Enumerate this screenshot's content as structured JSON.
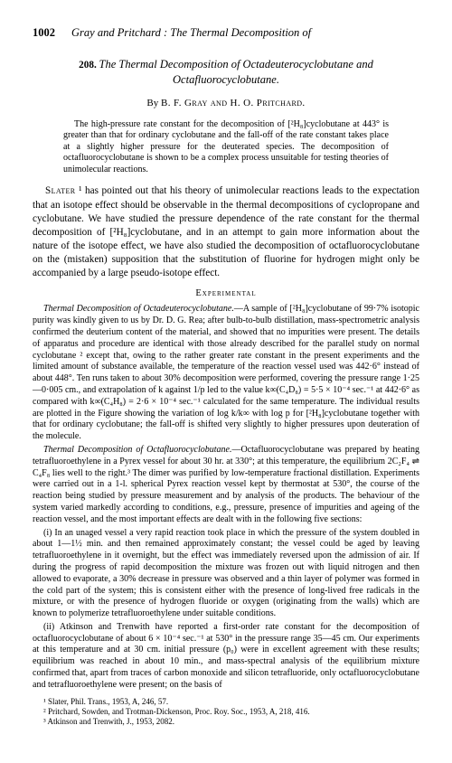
{
  "header": {
    "page_number": "1002",
    "running_head": "Gray and Pritchard : The Thermal Decomposition of"
  },
  "article": {
    "number": "208.",
    "title_line1": "The Thermal Decomposition of Octadeuterocyclobutane and",
    "title_line2": "Octafluorocyclobutane.",
    "byline_prefix": "By",
    "authors": "B. F. Gray and H. O. Pritchard."
  },
  "abstract": {
    "text": "The high-pressure rate constant for the decomposition of [²H₈]cyclobutane at 443° is greater than that for ordinary cyclobutane and the fall-off of the rate constant takes place at a slightly higher pressure for the deuterated species. The decomposition of octafluorocyclobutane is shown to be a complex process unsuitable for testing theories of unimolecular reactions."
  },
  "intro": {
    "lead_name": "Slater",
    "para": " ¹ has pointed out that his theory of unimolecular reactions leads to the expectation that an isotope effect should be observable in the thermal decompositions of cyclopropane and cyclobutane. We have studied the pressure dependence of the rate constant for the thermal decomposition of [²H₈]cyclobutane, and in an attempt to gain more information about the nature of the isotope effect, we have also studied the decomposition of octafluorocyclobutane on the (mistaken) supposition that the substitution of fluorine for hydrogen might only be accompanied by a large pseudo-isotope effect."
  },
  "experimental": {
    "heading": "Experimental",
    "para1_runin": "Thermal Decomposition of Octadeuterocyclobutane.",
    "para1": "—A sample of [²H₈]cyclobutane of 99·7% isotopic purity was kindly given to us by Dr. D. G. Rea; after bulb-to-bulb distillation, mass-spectrometric analysis confirmed the deuterium content of the material, and showed that no impurities were present. The details of apparatus and procedure are identical with those already described for the parallel study on normal cyclobutane ² except that, owing to the rather greater rate constant in the present experiments and the limited amount of substance available, the temperature of the reaction vessel used was 442·6° instead of about 448°. Ten runs taken to about 30% decomposition were performed, covering the pressure range 1·25—0·005 cm., and extrapolation of k against 1/p led to the value k∞(C₄D₈) = 5·5 × 10⁻⁴ sec.⁻¹ at 442·6° as compared with k∞(C₄H₈) = 2·6 × 10⁻⁴ sec.⁻¹ calculated for the same temperature. The individual results are plotted in the Figure showing the variation of log k/k∞ with log p for [²H₈]cyclobutane together with that for ordinary cyclobutane; the fall-off is shifted very slightly to higher pressures upon deuteration of the molecule.",
    "para2_runin": "Thermal Decomposition of Octafluorocyclobutane.",
    "para2": "—Octafluorocyclobutane was prepared by heating tetrafluoroethylene in a Pyrex vessel for about 30 hr. at 330°; at this temperature, the equilibrium 2C₂F₄ ⇌ C₄F₈ lies well to the right.³ The dimer was purified by low-temperature fractional distillation. Experiments were carried out in a 1-l. spherical Pyrex reaction vessel kept by thermostat at 530°, the course of the reaction being studied by pressure measurement and by analysis of the products. The behaviour of the system varied markedly according to conditions, e.g., pressure, presence of impurities and ageing of the reaction vessel, and the most important effects are dealt with in the following five sections:",
    "para3": "(i) In an unaged vessel a very rapid reaction took place in which the pressure of the system doubled in about 1—1½ min. and then remained approximately constant; the vessel could be aged by leaving tetrafluoroethylene in it overnight, but the effect was immediately reversed upon the admission of air. If during the progress of rapid decomposition the mixture was frozen out with liquid nitrogen and then allowed to evaporate, a 30% decrease in pressure was observed and a thin layer of polymer was formed in the cold part of the system; this is consistent either with the presence of long-lived free radicals in the mixture, or with the presence of hydrogen fluoride or oxygen (originating from the walls) which are known to polymerize tetrafluoroethylene under suitable conditions.",
    "para4": "(ii) Atkinson and Trenwith have reported a first-order rate constant for the decomposition of octafluorocyclobutane of about 6 × 10⁻⁴ sec.⁻¹ at 530° in the pressure range 35—45 cm. Our experiments at this temperature and at 30 cm. initial pressure (p₀) were in excellent agreement with these results; equilibrium was reached in about 10 min., and mass-spectral analysis of the equilibrium mixture confirmed that, apart from traces of carbon monoxide and silicon tetrafluoride, only octafluorocyclobutane and tetrafluoroethylene were present; on the basis of"
  },
  "footnotes": {
    "f1": "¹ Slater, Phil. Trans., 1953, A, 246, 57.",
    "f2": "² Pritchard, Sowden, and Trotman-Dickenson, Proc. Roy. Soc., 1953, A, 218, 416.",
    "f3": "³ Atkinson and Trenwith, J., 1953, 2082."
  }
}
